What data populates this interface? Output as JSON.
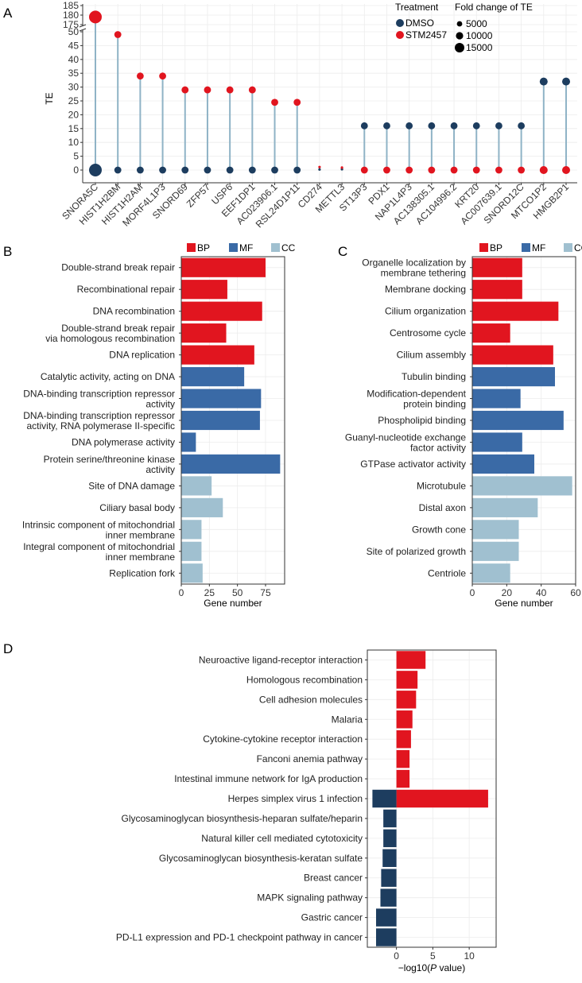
{
  "panel_labels": {
    "a": "A",
    "b": "B",
    "c": "C",
    "d": "D"
  },
  "colors": {
    "dmso": "#1d3d5f",
    "stm": "#e1151f",
    "stem": "#8fb3c6",
    "bp": "#e1151f",
    "mf": "#3a6aa6",
    "cc": "#a0c0d0",
    "kegg_up": "#e1151f",
    "kegg_down": "#1d3d5f",
    "grid": "#ececec",
    "axis": "#333333"
  },
  "chart_data": [
    {
      "id": "A",
      "type": "scatter",
      "ylabel": "TE",
      "ylim_lower": [
        0,
        50
      ],
      "ylim_upper": [
        175,
        185
      ],
      "yticks_lower": [
        0,
        5,
        10,
        15,
        20,
        25,
        30,
        35,
        40,
        45,
        50
      ],
      "yticks_upper": [
        175,
        180,
        185
      ],
      "legend": {
        "treatment_title": "Treatment",
        "treatments": [
          "DMSO",
          "STM2457"
        ],
        "size_title": "Fold change of TE",
        "sizes": [
          5000,
          10000,
          15000
        ]
      },
      "categories": [
        "SNORA5C",
        "HIST1H2BM",
        "HIST1H2AM",
        "MORF4L1P3",
        "SNORD69",
        "ZFP57",
        "USP6",
        "EEF1DP1",
        "AC023906.1",
        "RSL24D1P11",
        "CD274",
        "METTL3",
        "ST13P3",
        "PDX1",
        "NAP1L4P3",
        "AC138305.1",
        "AC104996.2",
        "KRT20",
        "AC007639.1",
        "SNORD12C",
        "MTCO1P2",
        "HMGB2P1"
      ],
      "series": [
        {
          "name": "DMSO",
          "values": [
            0,
            0,
            0,
            0,
            0,
            0,
            0,
            0,
            0,
            0,
            0.2,
            0.3,
            16,
            16,
            16,
            16,
            16,
            16,
            16,
            16,
            32,
            32
          ],
          "fold_change": [
            16000,
            4000,
            4000,
            4000,
            4000,
            4000,
            4000,
            4000,
            4000,
            4000,
            400,
            400,
            3000,
            3000,
            3000,
            3000,
            3000,
            3000,
            3000,
            3000,
            5000,
            5000
          ]
        },
        {
          "name": "STM2457",
          "values": [
            179,
            49,
            34,
            34,
            29,
            29,
            29,
            29,
            24.5,
            24.5,
            1.1,
            0.9,
            0,
            0,
            0,
            0,
            0,
            0,
            0,
            0,
            0,
            0
          ],
          "fold_change": [
            16000,
            4000,
            4000,
            4000,
            4000,
            4000,
            4000,
            4000,
            3000,
            3000,
            400,
            400,
            3000,
            3000,
            3000,
            3000,
            3000,
            3000,
            3000,
            3000,
            5000,
            5000
          ]
        }
      ]
    },
    {
      "id": "B",
      "type": "bar",
      "orientation": "horizontal",
      "xlabel": "Gene number",
      "xlim": [
        0,
        92
      ],
      "xticks": [
        0,
        25,
        50,
        75
      ],
      "legend": [
        "BP",
        "MF",
        "CC"
      ],
      "categories": [
        {
          "label": [
            "Double-strand break repair"
          ],
          "value": 75,
          "group": "BP"
        },
        {
          "label": [
            "Recombinational repair"
          ],
          "value": 41,
          "group": "BP"
        },
        {
          "label": [
            "DNA recombination"
          ],
          "value": 72,
          "group": "BP"
        },
        {
          "label": [
            "Double-strand break repair",
            "via homologous recombination"
          ],
          "value": 40,
          "group": "BP"
        },
        {
          "label": [
            "DNA replication"
          ],
          "value": 65,
          "group": "BP"
        },
        {
          "label": [
            "Catalytic activity, acting on DNA"
          ],
          "value": 56,
          "group": "MF"
        },
        {
          "label": [
            "DNA-binding transcription repressor",
            "activity"
          ],
          "value": 71,
          "group": "MF"
        },
        {
          "label": [
            "DNA-binding transcription repressor",
            "activity, RNA polymerase II-specific"
          ],
          "value": 70,
          "group": "MF"
        },
        {
          "label": [
            "DNA polymerase activity"
          ],
          "value": 13,
          "group": "MF"
        },
        {
          "label": [
            "Protein serine/threonine kinase",
            "activity"
          ],
          "value": 88,
          "group": "MF"
        },
        {
          "label": [
            "Site of DNA damage"
          ],
          "value": 27,
          "group": "CC"
        },
        {
          "label": [
            "Ciliary basal body"
          ],
          "value": 37,
          "group": "CC"
        },
        {
          "label": [
            "Intrinsic component of mitochondrial",
            "inner membrane"
          ],
          "value": 18,
          "group": "CC"
        },
        {
          "label": [
            "Integral component of mitochondrial",
            "inner membrane"
          ],
          "value": 18,
          "group": "CC"
        },
        {
          "label": [
            "Replication fork"
          ],
          "value": 19,
          "group": "CC"
        }
      ]
    },
    {
      "id": "C",
      "type": "bar",
      "orientation": "horizontal",
      "xlabel": "Gene number",
      "xlim": [
        0,
        60
      ],
      "xticks": [
        0,
        20,
        40,
        60
      ],
      "legend": [
        "BP",
        "MF",
        "CC"
      ],
      "categories": [
        {
          "label": [
            "Organelle localization by",
            "membrane tethering"
          ],
          "value": 29,
          "group": "BP"
        },
        {
          "label": [
            "Membrane docking"
          ],
          "value": 29,
          "group": "BP"
        },
        {
          "label": [
            "Cilium organization"
          ],
          "value": 50,
          "group": "BP"
        },
        {
          "label": [
            "Centrosome cycle"
          ],
          "value": 22,
          "group": "BP"
        },
        {
          "label": [
            "Cilium assembly"
          ],
          "value": 47,
          "group": "BP"
        },
        {
          "label": [
            "Tubulin binding"
          ],
          "value": 48,
          "group": "MF"
        },
        {
          "label": [
            "Modification-dependent",
            "protein binding"
          ],
          "value": 28,
          "group": "MF"
        },
        {
          "label": [
            "Phospholipid binding"
          ],
          "value": 53,
          "group": "MF"
        },
        {
          "label": [
            "Guanyl-nucleotide exchange",
            "factor activity"
          ],
          "value": 29,
          "group": "MF"
        },
        {
          "label": [
            "GTPase activator activity"
          ],
          "value": 36,
          "group": "MF"
        },
        {
          "label": [
            "Microtubule"
          ],
          "value": 58,
          "group": "CC"
        },
        {
          "label": [
            "Distal axon"
          ],
          "value": 38,
          "group": "CC"
        },
        {
          "label": [
            "Growth cone"
          ],
          "value": 27,
          "group": "CC"
        },
        {
          "label": [
            "Site of polarized growth"
          ],
          "value": 27,
          "group": "CC"
        },
        {
          "label": [
            "Centriole"
          ],
          "value": 22,
          "group": "CC"
        }
      ]
    },
    {
      "id": "D",
      "type": "bar",
      "orientation": "horizontal",
      "xlabel": "−log10(P value)",
      "xlabel_parts": [
        "−log10(",
        "P",
        " value)"
      ],
      "xlim": [
        -4.0,
        13.7
      ],
      "xticks": [
        0,
        5,
        10
      ],
      "categories": [
        {
          "label": "Neuroactive ligand-receptor interaction",
          "value": 4.0
        },
        {
          "label": "Homologous recombination",
          "value": 2.9
        },
        {
          "label": "Cell adhesion molecules",
          "value": 2.7
        },
        {
          "label": "Malaria",
          "value": 2.2
        },
        {
          "label": "Cytokine-cytokine receptor interaction",
          "value": 2.0
        },
        {
          "label": "Fanconi anemia pathway",
          "value": 1.8
        },
        {
          "label": "Intestinal immune network for IgA production",
          "value": 1.8
        },
        {
          "label": "Herpes simplex virus 1 infection",
          "value": 12.6,
          "value_neg": -3.3
        },
        {
          "label": "Glycosaminoglycan biosynthesis-heparan sulfate/heparin",
          "value": -1.8
        },
        {
          "label": "Natural killer cell mediated cytotoxicity",
          "value": -1.8
        },
        {
          "label": "Glycosaminoglycan biosynthesis-keratan sulfate",
          "value": -1.9
        },
        {
          "label": "Breast cancer",
          "value": -2.1
        },
        {
          "label": "MAPK signaling pathway",
          "value": -2.2
        },
        {
          "label": "Gastric cancer",
          "value": -2.8
        },
        {
          "label": "PD-L1 expression and PD-1 checkpoint pathway in cancer",
          "value": -2.8
        }
      ]
    }
  ]
}
